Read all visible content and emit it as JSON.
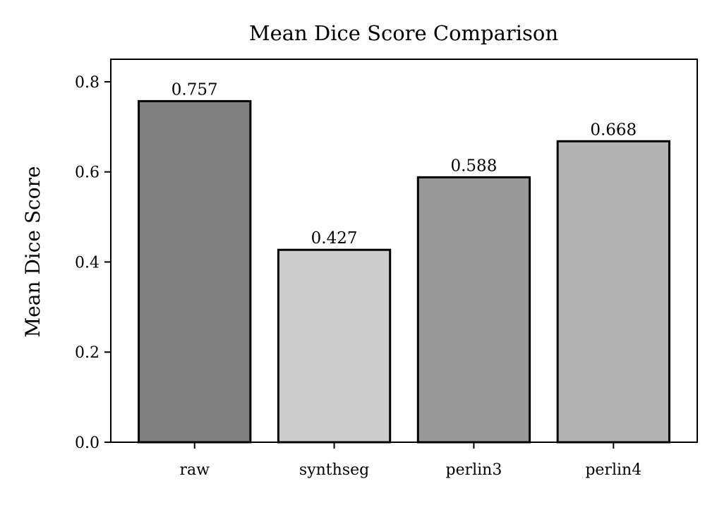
{
  "chart_data": {
    "type": "bar",
    "title": "Mean Dice Score Comparison",
    "xlabel": "",
    "ylabel": "Mean Dice Score",
    "categories": [
      "raw",
      "synthseg",
      "perlin3",
      "perlin4"
    ],
    "values": [
      0.757,
      0.427,
      0.588,
      0.668
    ],
    "value_labels": [
      "0.757",
      "0.427",
      "0.588",
      "0.668"
    ],
    "bar_colors": [
      "#808080",
      "#cccccc",
      "#999999",
      "#b3b3b3"
    ],
    "edge_color": "#000000",
    "ylim": [
      0,
      0.85
    ],
    "yticks": [
      0.0,
      0.2,
      0.4,
      0.6,
      0.8
    ],
    "ytick_labels": [
      "0.0",
      "0.2",
      "0.4",
      "0.6",
      "0.8"
    ],
    "grid": false,
    "legend": "none"
  }
}
